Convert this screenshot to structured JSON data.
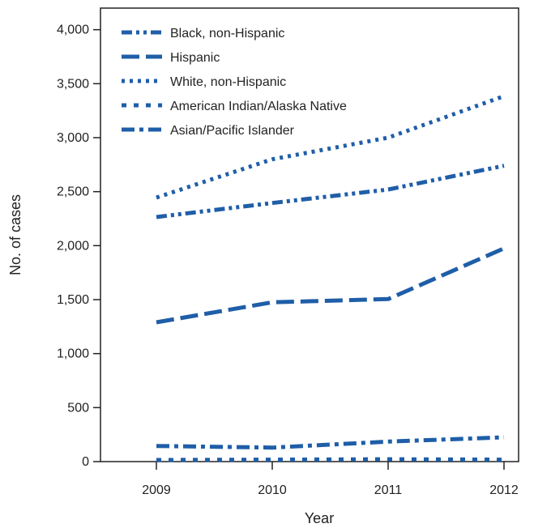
{
  "colors": {
    "series": "#1f5ea8",
    "axis": "#222222",
    "background": "#ffffff"
  },
  "chart_data": {
    "type": "line",
    "title": "",
    "xlabel": "Year",
    "ylabel": "No. of cases",
    "x": [
      "2009",
      "2010",
      "2011",
      "2012"
    ],
    "ylim": [
      0,
      4200
    ],
    "yticks": [
      0,
      500,
      1000,
      1500,
      2000,
      2500,
      3000,
      3500,
      4000
    ],
    "ytick_labels": [
      "0",
      "500",
      "1,000",
      "1,500",
      "2,000",
      "2,500",
      "3,000",
      "3,500",
      "4,000"
    ],
    "grid": false,
    "legend_position": "top-left",
    "series": [
      {
        "name": "Black, non-Hispanic",
        "dash": "dash-dot-dot",
        "values": [
          2265,
          2395,
          2520,
          2740
        ]
      },
      {
        "name": "Hispanic",
        "dash": "long-dash",
        "values": [
          1290,
          1475,
          1505,
          1975
        ]
      },
      {
        "name": "White, non-Hispanic",
        "dash": "dotted",
        "values": [
          2445,
          2800,
          3000,
          3385
        ]
      },
      {
        "name": "American Indian/Alaska Native",
        "dash": "square-dot",
        "values": [
          15,
          18,
          22,
          18
        ]
      },
      {
        "name": "Asian/Pacific Islander",
        "dash": "dash-dot",
        "values": [
          145,
          130,
          185,
          225
        ]
      }
    ]
  }
}
